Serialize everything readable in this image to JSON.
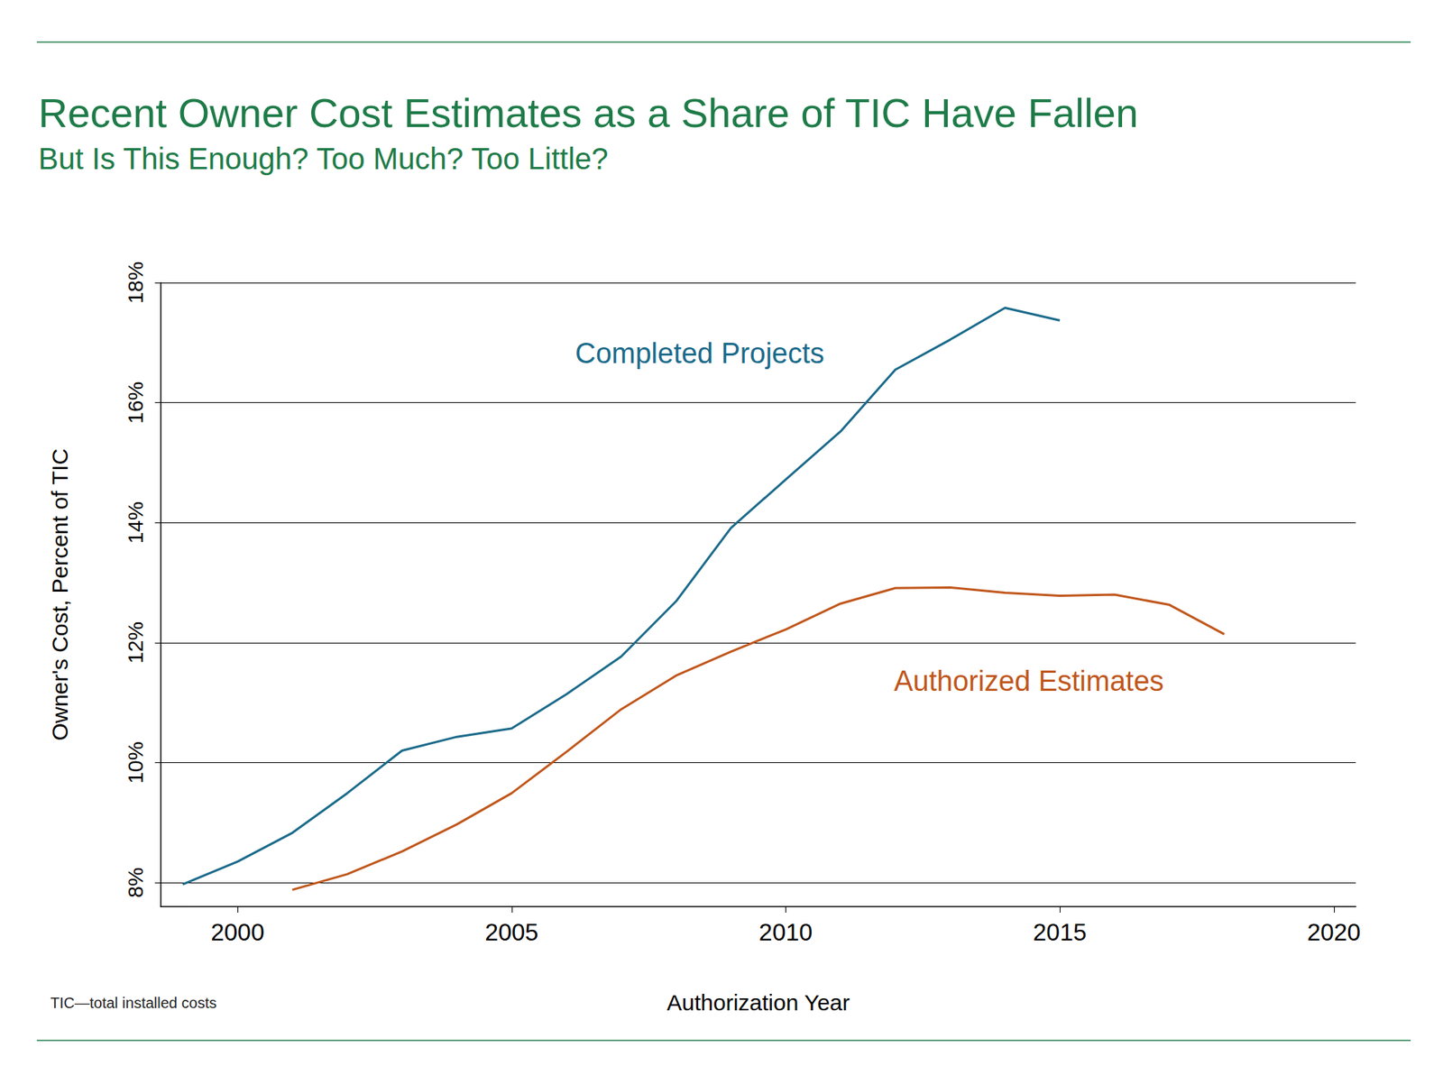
{
  "chart_data": {
    "type": "line",
    "title": "Recent Owner Cost Estimates as a Share of TIC Have Fallen",
    "subtitle": "But Is This Enough? Too Much? Too Little?",
    "x_label": "Authorization Year",
    "y_label": "Owner's Cost, Percent of TIC",
    "note": "TIC—total installed costs",
    "series": [
      {
        "name": "Completed Projects",
        "color": "#1a6a8a",
        "x": [
          1999,
          2000,
          2001,
          2002,
          2003,
          2004,
          2005,
          2006,
          2007,
          2008,
          2009,
          2010,
          2011,
          2012,
          2013,
          2014,
          2015
        ],
        "values": [
          7.97,
          8.35,
          8.83,
          9.49,
          10.2,
          10.43,
          10.57,
          11.14,
          11.77,
          12.69,
          13.91,
          14.72,
          15.52,
          16.55,
          17.05,
          17.58,
          17.37
        ]
      },
      {
        "name": "Authorized Estimates",
        "color": "#c0561b",
        "x": [
          2001,
          2002,
          2003,
          2004,
          2005,
          2006,
          2007,
          2008,
          2009,
          2010,
          2011,
          2012,
          2013,
          2014,
          2015,
          2016,
          2017,
          2018
        ],
        "values": [
          7.88,
          8.14,
          8.52,
          8.97,
          9.49,
          10.18,
          10.89,
          11.45,
          11.85,
          12.22,
          12.65,
          12.91,
          12.92,
          12.83,
          12.78,
          12.8,
          12.63,
          12.14
        ]
      }
    ],
    "xlim": [
      1998.6,
      2020.4
    ],
    "xticks": [
      2000,
      2005,
      2010,
      2015,
      2020
    ],
    "ylim": [
      7.6,
      18
    ],
    "yticks": [
      {
        "value": 8,
        "label": "8%"
      },
      {
        "value": 10,
        "label": "10%"
      },
      {
        "value": 12,
        "label": "12%"
      },
      {
        "value": 14,
        "label": "14%"
      },
      {
        "value": 16,
        "label": "16%"
      },
      {
        "value": 18,
        "label": "18%"
      }
    ],
    "grid": true
  }
}
